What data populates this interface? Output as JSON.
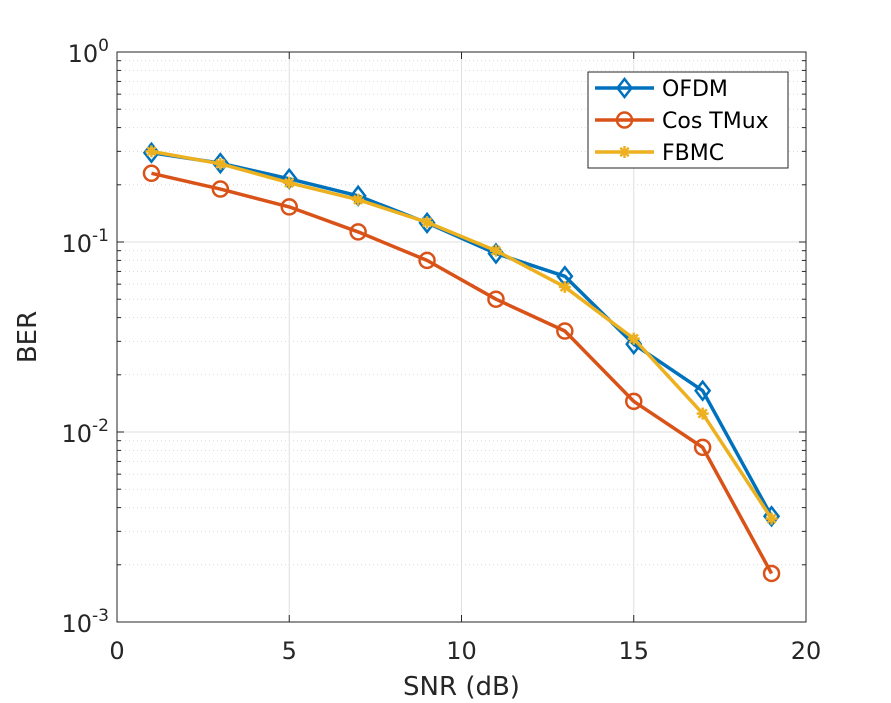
{
  "chart_data": {
    "type": "line",
    "xlabel": "SNR (dB)",
    "ylabel": "BER",
    "xlim": [
      0,
      20
    ],
    "ylim": [
      0.001,
      1
    ],
    "yscale": "log",
    "grid": true,
    "minor_grid": true,
    "legend_position": "top-right",
    "x_ticks": [
      {
        "value": 0,
        "label": "0"
      },
      {
        "value": 5,
        "label": "5"
      },
      {
        "value": 10,
        "label": "10"
      },
      {
        "value": 15,
        "label": "15"
      },
      {
        "value": 20,
        "label": "20"
      }
    ],
    "y_ticks": [
      {
        "value": 0.001,
        "base": "10",
        "exp": "-3"
      },
      {
        "value": 0.01,
        "base": "10",
        "exp": "-2"
      },
      {
        "value": 0.1,
        "base": "10",
        "exp": "-1"
      },
      {
        "value": 1,
        "base": "10",
        "exp": "0"
      }
    ],
    "x": [
      1,
      3,
      5,
      7,
      9,
      11,
      13,
      15,
      17,
      19
    ],
    "series": [
      {
        "name": "OFDM",
        "color": "#0072BD",
        "marker": "diamond",
        "values": [
          0.295,
          0.26,
          0.215,
          0.175,
          0.126,
          0.087,
          0.066,
          0.029,
          0.0165,
          0.0036
        ]
      },
      {
        "name": "Cos TMux",
        "color": "#D95319",
        "marker": "circle",
        "values": [
          0.23,
          0.19,
          0.153,
          0.113,
          0.08,
          0.05,
          0.034,
          0.0145,
          0.0083,
          0.0018
        ]
      },
      {
        "name": "FBMC",
        "color": "#EDB120",
        "marker": "star",
        "values": [
          0.3,
          0.258,
          0.205,
          0.167,
          0.127,
          0.09,
          0.058,
          0.031,
          0.0125,
          0.0035
        ]
      }
    ]
  }
}
